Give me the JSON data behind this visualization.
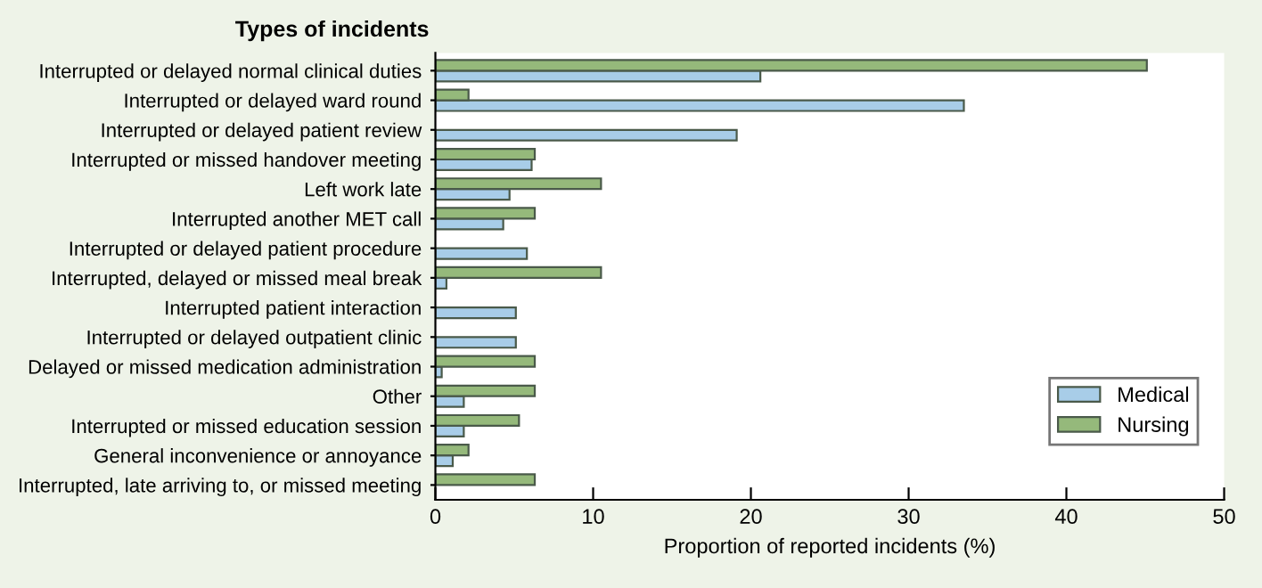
{
  "chart_data": {
    "type": "bar",
    "orientation": "horizontal",
    "ylabel": "Types of incidents",
    "xlabel": "Proportion of reported incidents (%)",
    "categories": [
      "Interrupted or delayed normal clinical duties",
      "Interrupted or delayed ward round",
      "Interrupted or delayed patient review",
      "Interrupted or missed handover meeting",
      "Left work late",
      "Interrupted another MET call",
      "Interrupted or delayed patient procedure",
      "Interrupted, delayed or missed meal break",
      "Interrupted patient interaction",
      "Interrupted or delayed outpatient clinic",
      "Delayed or missed medication administration",
      "Other",
      "Interrupted or missed education session",
      "General inconvenience or annoyance",
      "Interrupted, late arriving to, or missed meeting"
    ],
    "series": [
      {
        "name": "Medical",
        "color": "#a8cde8",
        "values": [
          20.6,
          33.5,
          19.1,
          6.1,
          4.7,
          4.3,
          5.8,
          0.7,
          5.1,
          5.1,
          0.4,
          1.8,
          1.8,
          1.1,
          null
        ]
      },
      {
        "name": "Nursing",
        "color": "#95b97b",
        "values": [
          45.1,
          2.1,
          null,
          6.3,
          10.5,
          6.3,
          null,
          10.5,
          null,
          null,
          6.3,
          6.3,
          5.3,
          2.1,
          6.3
        ]
      }
    ],
    "xlim": [
      0,
      50
    ],
    "xticks": [
      0,
      10,
      20,
      30,
      40,
      50
    ],
    "grid": false,
    "legend": "bottom right"
  }
}
